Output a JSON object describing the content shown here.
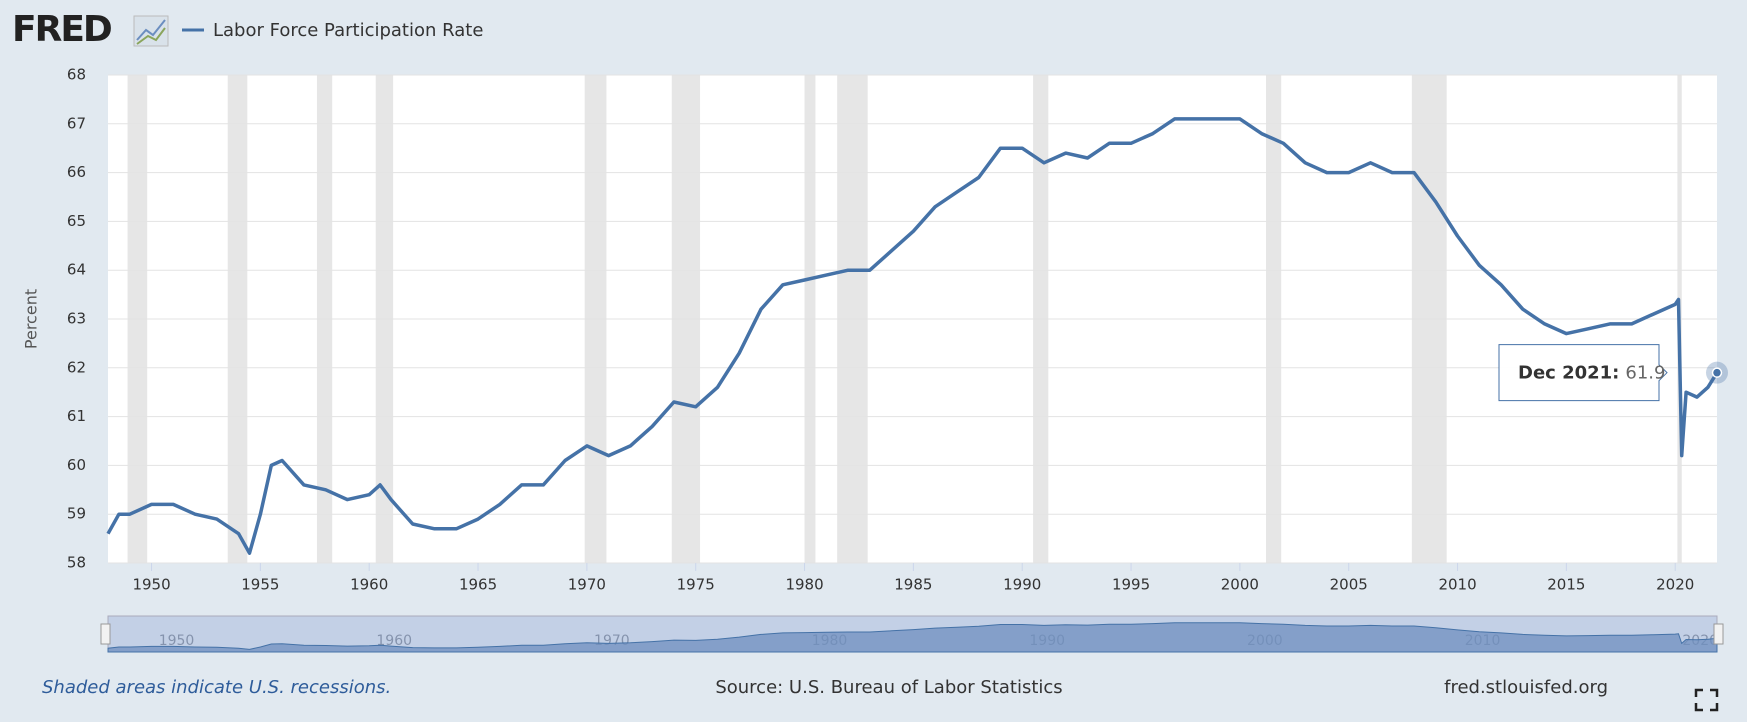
{
  "chart_data": {
    "type": "line",
    "logo": "FRED",
    "ylabel": "Percent",
    "series": [
      {
        "name": "Labor Force Participation Rate",
        "color": "#4572a7",
        "x": [
          1948.0,
          1948.5,
          1949,
          1950,
          1951,
          1952,
          1953,
          1954,
          1954.5,
          1955,
          1955.5,
          1956,
          1957,
          1958,
          1959,
          1960,
          1960.5,
          1961,
          1962,
          1963,
          1964,
          1965,
          1966,
          1967,
          1968,
          1969,
          1970,
          1971,
          1972,
          1973,
          1974,
          1975,
          1976,
          1977,
          1978,
          1979,
          1980,
          1981,
          1982,
          1983,
          1984,
          1985,
          1986,
          1987,
          1988,
          1989,
          1990,
          1991,
          1992,
          1993,
          1994,
          1995,
          1996,
          1997,
          1998,
          1999,
          2000,
          2001,
          2002,
          2003,
          2004,
          2005,
          2006,
          2007,
          2008,
          2009,
          2010,
          2011,
          2012,
          2013,
          2014,
          2015,
          2016,
          2017,
          2018,
          2019,
          2020.0,
          2020.15,
          2020.3,
          2020.5,
          2021,
          2021.5,
          2021.92
        ],
        "values": [
          58.6,
          59.0,
          59.0,
          59.2,
          59.2,
          59.0,
          58.9,
          58.6,
          58.2,
          59.0,
          60.0,
          60.1,
          59.6,
          59.5,
          59.3,
          59.4,
          59.6,
          59.3,
          58.8,
          58.7,
          58.7,
          58.9,
          59.2,
          59.6,
          59.6,
          60.1,
          60.4,
          60.2,
          60.4,
          60.8,
          61.3,
          61.2,
          61.6,
          62.3,
          63.2,
          63.7,
          63.8,
          63.9,
          64.0,
          64.0,
          64.4,
          64.8,
          65.3,
          65.6,
          65.9,
          66.5,
          66.5,
          66.2,
          66.4,
          66.3,
          66.6,
          66.6,
          66.8,
          67.1,
          67.1,
          67.1,
          67.1,
          66.8,
          66.6,
          66.2,
          66.0,
          66.0,
          66.2,
          66.0,
          66.0,
          65.4,
          64.7,
          64.1,
          63.7,
          63.2,
          62.9,
          62.7,
          62.8,
          62.9,
          62.9,
          63.1,
          63.3,
          63.4,
          60.2,
          61.5,
          61.4,
          61.6,
          61.9
        ]
      }
    ],
    "recessions": [
      [
        1948.9,
        1949.8
      ],
      [
        1953.5,
        1954.4
      ],
      [
        1957.6,
        1958.3
      ],
      [
        1960.3,
        1961.1
      ],
      [
        1969.9,
        1970.9
      ],
      [
        1973.9,
        1975.2
      ],
      [
        1980.0,
        1980.5
      ],
      [
        1981.5,
        1982.9
      ],
      [
        1990.5,
        1991.2
      ],
      [
        2001.2,
        2001.9
      ],
      [
        2007.9,
        2009.5
      ],
      [
        2020.1,
        2020.3
      ]
    ],
    "xlim": [
      1948,
      2021.92
    ],
    "xticks": [
      1950,
      1955,
      1960,
      1965,
      1970,
      1975,
      1980,
      1985,
      1990,
      1995,
      2000,
      2005,
      2010,
      2015,
      2020
    ],
    "ylim": [
      58,
      68
    ],
    "yticks": [
      58,
      59,
      60,
      61,
      62,
      63,
      64,
      65,
      66,
      67,
      68
    ],
    "grid": true,
    "tooltip": {
      "label": "Dec 2021:",
      "value": 61.9
    },
    "recession_note": "Shaded areas indicate U.S. recessions.",
    "source": "Source: U.S. Bureau of Labor Statistics",
    "site": "fred.stlouisfed.org"
  }
}
